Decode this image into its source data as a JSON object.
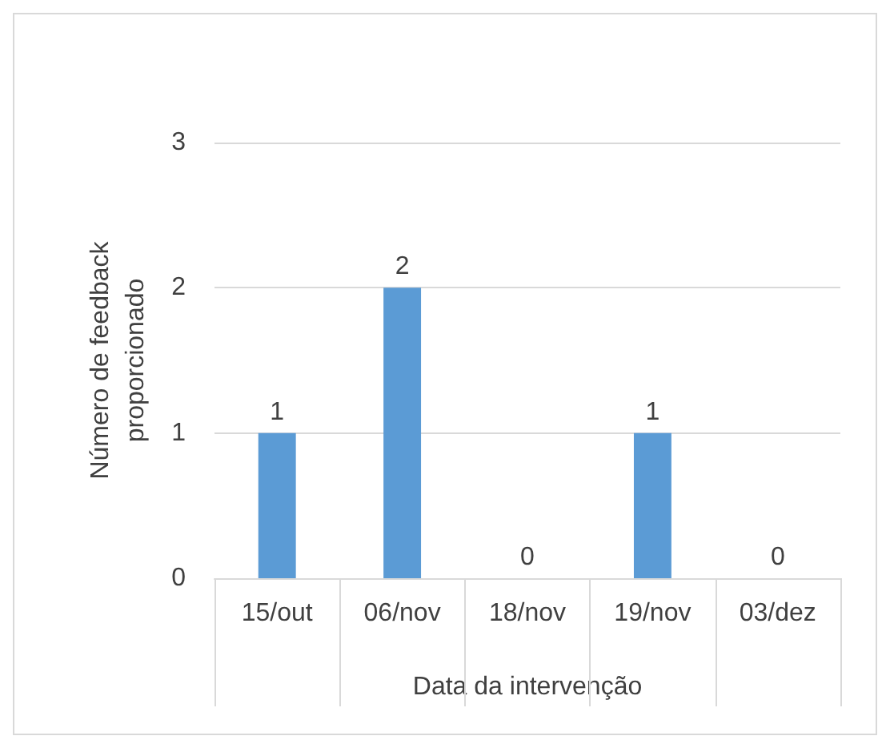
{
  "chart_data": {
    "type": "bar",
    "xlabel": "Data da intervenção",
    "ylabel": "Número de feedback\nproporcionado",
    "categories": [
      "15/out",
      "06/nov",
      "18/nov",
      "19/nov",
      "03/dez"
    ],
    "values": [
      1,
      2,
      0,
      1,
      0
    ],
    "color": "#5b9bd5",
    "ylim": [
      0,
      3
    ],
    "yticks": [
      0,
      1,
      2,
      3
    ],
    "grid": "y",
    "data_labels": true
  }
}
